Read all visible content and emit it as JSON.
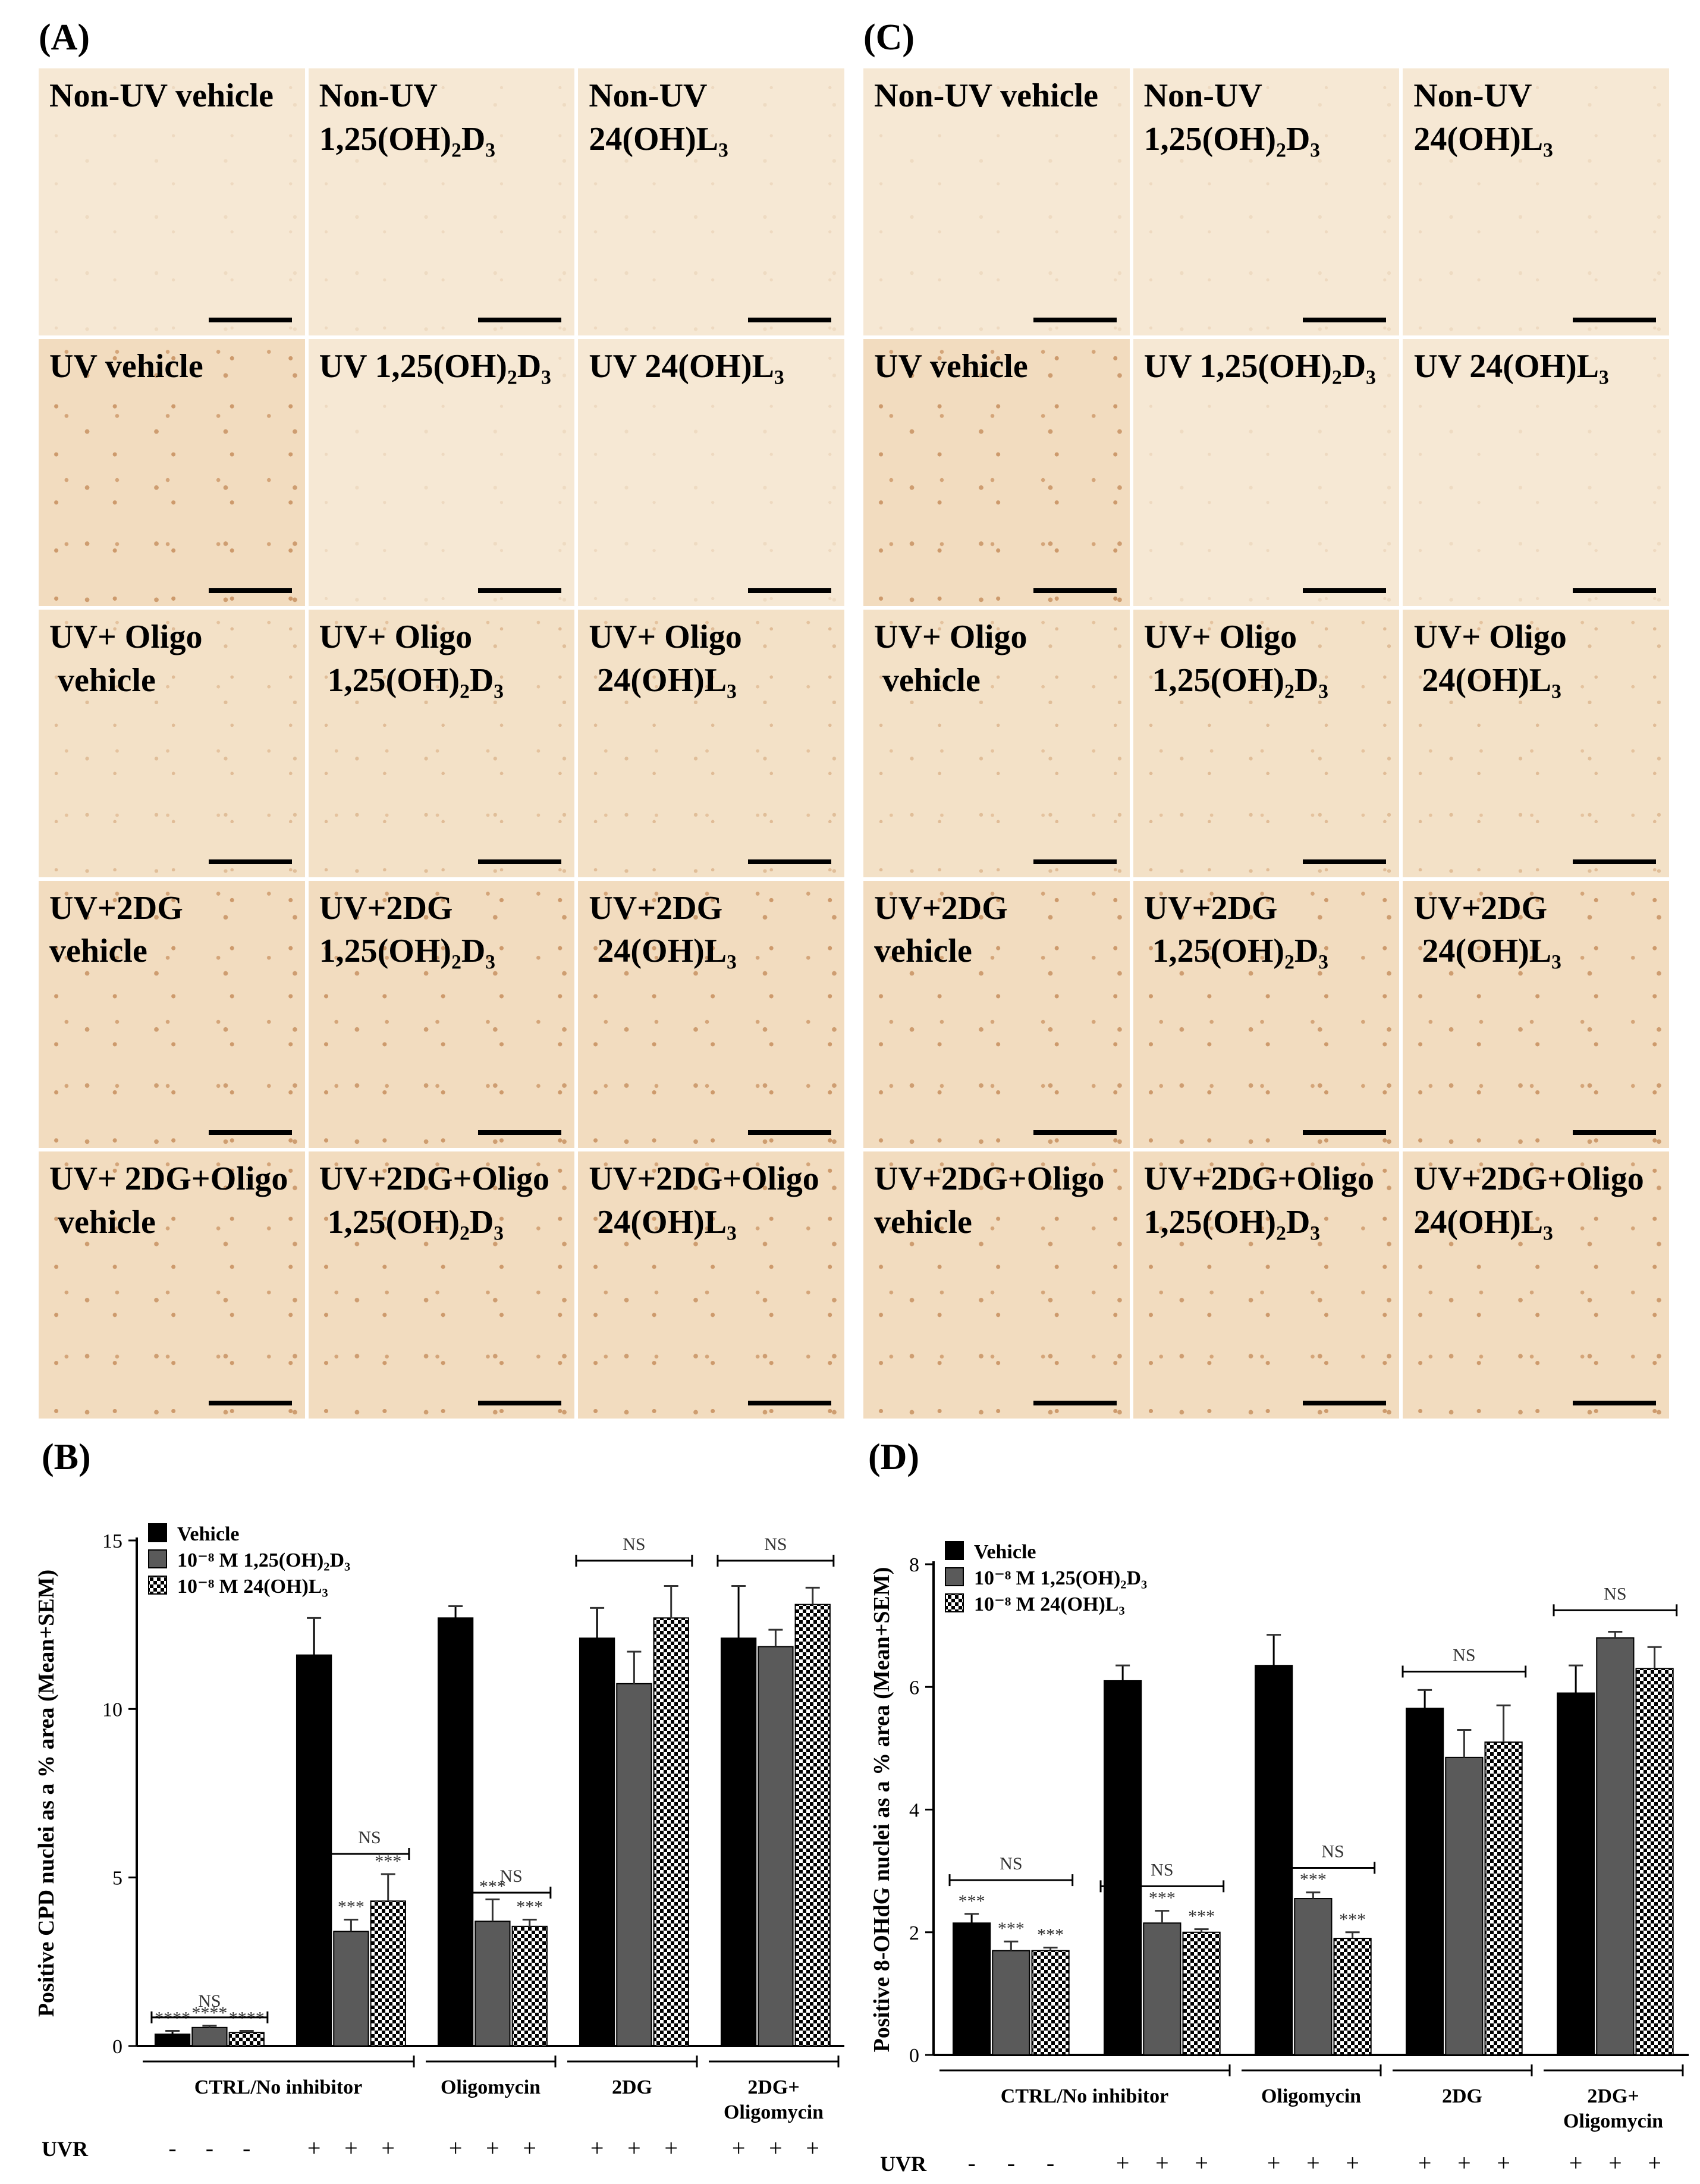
{
  "panels": {
    "A": {
      "label": "(A)",
      "tiles": [
        [
          "Non-UV vehicle"
        ],
        [
          "Non-UV",
          "1,25(OH)₂D₃"
        ],
        [
          "Non-UV",
          "24(OH)L₃"
        ],
        [
          "UV vehicle"
        ],
        [
          "UV 1,25(OH)₂D₃"
        ],
        [
          "UV 24(OH)L₃"
        ],
        [
          "UV+ Oligo",
          " vehicle"
        ],
        [
          "UV+ Oligo",
          " 1,25(OH)₂D₃"
        ],
        [
          "UV+ Oligo",
          " 24(OH)L₃"
        ],
        [
          "UV+2DG",
          "vehicle"
        ],
        [
          "UV+2DG",
          "1,25(OH)₂D₃"
        ],
        [
          "UV+2DG",
          " 24(OH)L₃"
        ],
        [
          "UV+ 2DG+Oligo",
          " vehicle"
        ],
        [
          "UV+2DG+Oligo",
          " 1,25(OH)₂D₃"
        ],
        [
          "UV+2DG+Oligo",
          " 24(OH)L₃"
        ]
      ]
    },
    "C": {
      "label": "(C)",
      "tiles": [
        [
          "Non-UV vehicle"
        ],
        [
          "Non-UV",
          "1,25(OH)₂D₃"
        ],
        [
          "Non-UV",
          "24(OH)L₃"
        ],
        [
          "UV vehicle"
        ],
        [
          "UV 1,25(OH)₂D₃"
        ],
        [
          "UV 24(OH)L₃"
        ],
        [
          "UV+ Oligo",
          " vehicle"
        ],
        [
          "UV+ Oligo",
          " 1,25(OH)₂D₃"
        ],
        [
          "UV+ Oligo",
          " 24(OH)L₃"
        ],
        [
          "UV+2DG",
          "vehicle"
        ],
        [
          "UV+2DG",
          " 1,25(OH)₂D₃"
        ],
        [
          "UV+2DG",
          " 24(OH)L₃"
        ],
        [
          "UV+2DG+Oligo",
          "vehicle"
        ],
        [
          "UV+2DG+Oligo",
          "1,25(OH)₂D₃"
        ],
        [
          "UV+2DG+Oligo",
          "24(OH)L₃"
        ]
      ]
    }
  },
  "chart_data": [
    {
      "panel": "(B)",
      "type": "bar",
      "ylabel": "Positive CPD nuclei as a % area (Mean+SEM)",
      "ylim": [
        0,
        15
      ],
      "yticks": [
        0,
        5,
        10,
        15
      ],
      "legend": [
        "Vehicle",
        "10⁻⁸ M 1,25(OH)₂D₃",
        "10⁻⁸ M 24(OH)L₃"
      ],
      "groups": [
        "CTRL/No inhibitor",
        "CTRL/No inhibitor",
        "Oligomycin",
        "2DG",
        "2DG+ Oligomycin"
      ],
      "group_labels": [
        "CTRL/No inhibitor",
        "Oligomycin",
        "2DG",
        "2DG+",
        "Oligomycin"
      ],
      "uvr_label": "UVR",
      "uvr": [
        "-",
        "-",
        "-",
        "+",
        "+",
        "+",
        "+",
        "+",
        "+",
        "+",
        "+",
        "+",
        "+",
        "+",
        "+"
      ],
      "series": [
        {
          "name": "Vehicle",
          "values": [
            0.35,
            11.6,
            12.7,
            12.1,
            12.1
          ],
          "err": [
            0.1,
            1.1,
            0.35,
            0.9,
            1.55
          ]
        },
        {
          "name": "10⁻⁸ M 1,25(OH)₂D₃",
          "values": [
            0.55,
            3.4,
            3.7,
            10.75,
            11.85
          ],
          "err": [
            0.05,
            0.35,
            0.65,
            0.95,
            0.5
          ]
        },
        {
          "name": "10⁻⁸ M 24(OH)L₃",
          "values": [
            0.4,
            4.3,
            3.55,
            12.7,
            13.1
          ],
          "err": [
            0.05,
            0.8,
            0.2,
            0.95,
            0.5
          ]
        }
      ],
      "stars": [
        [
          "****",
          "****",
          "****"
        ],
        [
          "",
          "***",
          "***"
        ],
        [
          "",
          "***",
          "***"
        ],
        [
          "",
          "",
          ""
        ],
        [
          "",
          "",
          ""
        ]
      ],
      "ns": "NS"
    },
    {
      "panel": "(D)",
      "type": "bar",
      "ylabel": "Positive 8-OHdG nuclei as a % area (Mean+SEM)",
      "ylim": [
        0,
        8
      ],
      "yticks": [
        0,
        2,
        4,
        6,
        8
      ],
      "legend": [
        "Vehicle",
        "10⁻⁸ M 1,25(OH)₂D₃",
        "10⁻⁸ M 24(OH)L₃"
      ],
      "group_labels": [
        "CTRL/No inhibitor",
        "Oligomycin",
        "2DG",
        "2DG+",
        "Oligomycin"
      ],
      "uvr_label": "UVR",
      "uvr": [
        "-",
        "-",
        "-",
        "+",
        "+",
        "+",
        "+",
        "+",
        "+",
        "+",
        "+",
        "+",
        "+",
        "+",
        "+"
      ],
      "series": [
        {
          "name": "Vehicle",
          "values": [
            2.15,
            6.1,
            6.35,
            5.65,
            5.9
          ],
          "err": [
            0.15,
            0.25,
            0.5,
            0.3,
            0.45
          ]
        },
        {
          "name": "10⁻⁸ M 1,25(OH)₂D₃",
          "values": [
            1.7,
            2.15,
            2.55,
            4.85,
            6.8
          ],
          "err": [
            0.15,
            0.2,
            0.1,
            0.45,
            0.1
          ]
        },
        {
          "name": "10⁻⁸ M 24(OH)L₃",
          "values": [
            1.7,
            2.0,
            1.9,
            5.1,
            6.3
          ],
          "err": [
            0.05,
            0.05,
            0.1,
            0.6,
            0.35
          ]
        }
      ],
      "stars": [
        [
          "***",
          "***",
          "***"
        ],
        [
          "",
          "***",
          "***"
        ],
        [
          "",
          "***",
          "***"
        ],
        [
          "",
          "",
          ""
        ],
        [
          "",
          "",
          ""
        ]
      ],
      "ns": "NS"
    }
  ]
}
